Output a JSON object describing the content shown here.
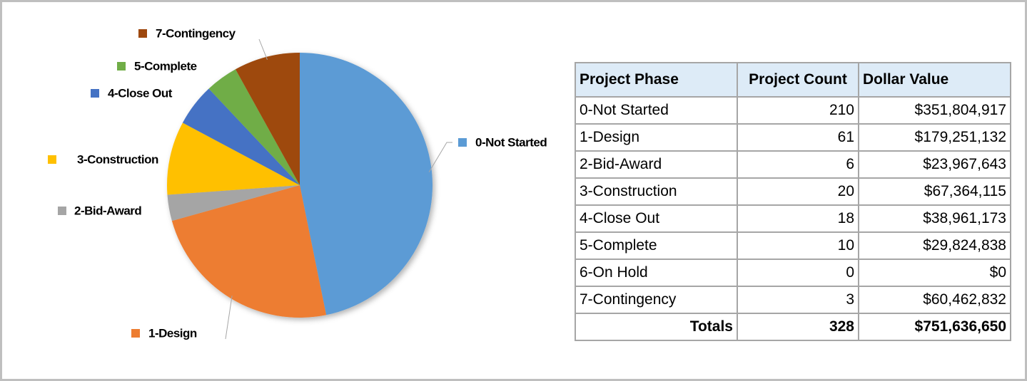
{
  "chart_data": {
    "type": "pie",
    "categories": [
      "0-Not Started",
      "1-Design",
      "2-Bid-Award",
      "3-Construction",
      "4-Close Out",
      "5-Complete",
      "7-Contingency"
    ],
    "values": [
      351804917,
      179251132,
      23967643,
      67364115,
      38961173,
      29824838,
      60462832
    ],
    "colors": [
      "#5b9bd5",
      "#ed7d31",
      "#a5a5a5",
      "#ffc000",
      "#4472c4",
      "#70ad47",
      "#9e480e"
    ]
  },
  "table": {
    "header": [
      "Project Phase",
      "Project Count",
      "Dollar Value"
    ],
    "rows": [
      [
        "0-Not Started",
        "210",
        "$351,804,917"
      ],
      [
        "1-Design",
        "61",
        "$179,251,132"
      ],
      [
        "2-Bid-Award",
        "6",
        "$23,967,643"
      ],
      [
        "3-Construction",
        "20",
        "$67,364,115"
      ],
      [
        "4-Close Out",
        "18",
        "$38,961,173"
      ],
      [
        "5-Complete",
        "10",
        "$29,824,838"
      ],
      [
        "6-On Hold",
        "0",
        "$0"
      ],
      [
        "7-Contingency",
        "3",
        "$60,462,832"
      ]
    ],
    "totals": [
      "Totals",
      "328",
      "$751,636,650"
    ]
  }
}
